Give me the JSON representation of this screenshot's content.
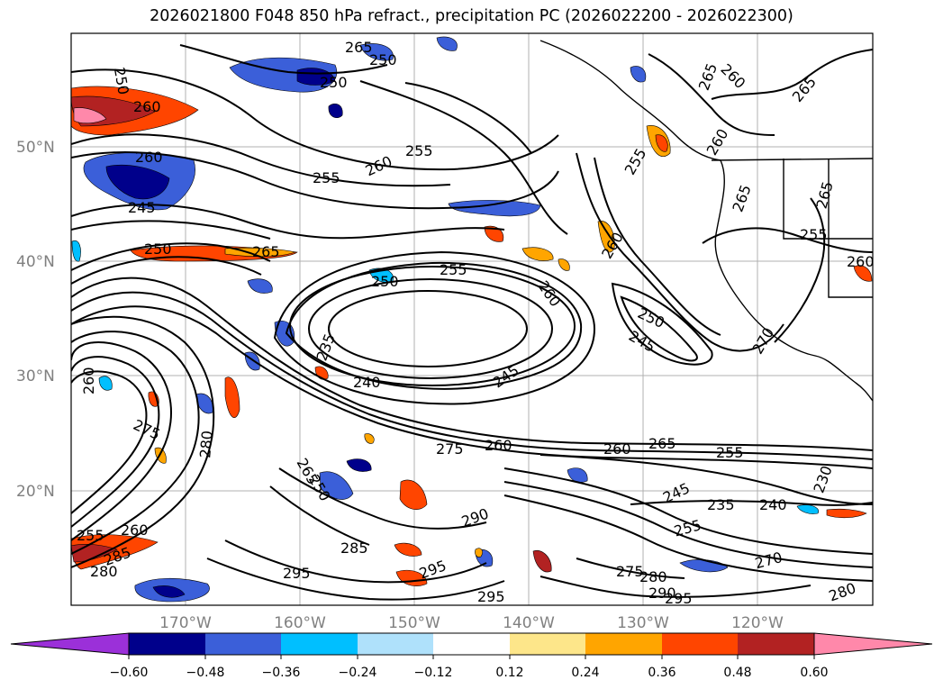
{
  "title": "2026021800 F048 850 hPa refract., precipitation PC (2026022200 - 2026022300)",
  "map": {
    "lat_labels": [
      "50°N",
      "40°N",
      "30°N",
      "20°N"
    ],
    "lon_labels": [
      "170°W",
      "160°W",
      "150°W",
      "140°W",
      "130°W",
      "120°W"
    ],
    "contour_labels": [
      {
        "text": "250"
      },
      {
        "text": "260"
      },
      {
        "text": "265"
      },
      {
        "text": "250"
      },
      {
        "text": "250"
      },
      {
        "text": "260"
      },
      {
        "text": "255"
      },
      {
        "text": "255"
      },
      {
        "text": "260"
      },
      {
        "text": "245"
      },
      {
        "text": "250"
      },
      {
        "text": "265"
      },
      {
        "text": "255"
      },
      {
        "text": "250"
      },
      {
        "text": "260"
      },
      {
        "text": "235"
      },
      {
        "text": "240"
      },
      {
        "text": "245"
      },
      {
        "text": "250"
      },
      {
        "text": "245"
      },
      {
        "text": "260"
      },
      {
        "text": "275"
      },
      {
        "text": "280"
      },
      {
        "text": "275"
      },
      {
        "text": "260"
      },
      {
        "text": "260"
      },
      {
        "text": "265"
      },
      {
        "text": "255"
      },
      {
        "text": "245"
      },
      {
        "text": "235"
      },
      {
        "text": "240"
      },
      {
        "text": "230"
      },
      {
        "text": "290"
      },
      {
        "text": "285"
      },
      {
        "text": "295"
      },
      {
        "text": "295"
      },
      {
        "text": "295"
      },
      {
        "text": "255"
      },
      {
        "text": "270"
      },
      {
        "text": "275"
      },
      {
        "text": "280"
      },
      {
        "text": "290"
      },
      {
        "text": "295"
      },
      {
        "text": "285"
      },
      {
        "text": "280"
      },
      {
        "text": "255"
      },
      {
        "text": "265"
      },
      {
        "text": "260"
      },
      {
        "text": "265"
      },
      {
        "text": "260"
      },
      {
        "text": "265"
      },
      {
        "text": "255"
      },
      {
        "text": "270"
      },
      {
        "text": "265"
      },
      {
        "text": "260"
      },
      {
        "text": "255"
      },
      {
        "text": "265"
      },
      {
        "text": "280"
      },
      {
        "text": "260"
      },
      {
        "text": "260"
      },
      {
        "text": "250"
      }
    ]
  },
  "colorbar": {
    "ticks": [
      "−0.60",
      "−0.48",
      "−0.36",
      "−0.24",
      "−0.12",
      "0.12",
      "0.24",
      "0.36",
      "0.48",
      "0.60"
    ],
    "colors": [
      "#9b30d9",
      "#00008b",
      "#3b5fd9",
      "#00bfff",
      "#afe1fb",
      "#ffffff",
      "#fde68a",
      "#ffa500",
      "#ff4500",
      "#b22222",
      "#ff88aa"
    ]
  }
}
